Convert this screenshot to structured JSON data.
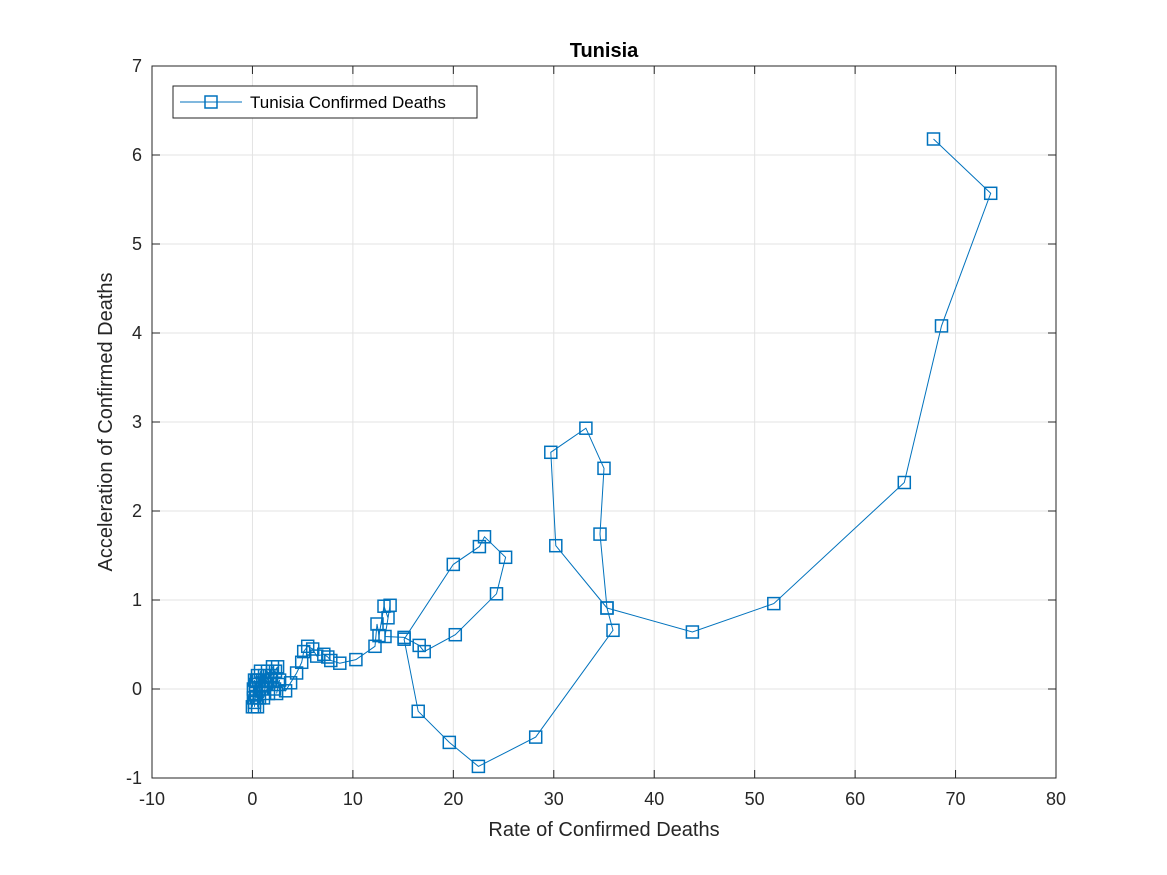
{
  "chart_data": {
    "type": "line",
    "title": "Tunisia",
    "xlabel": "Rate of Confirmed Deaths",
    "ylabel": "Acceleration of Confirmed Deaths",
    "xlim": [
      -10,
      80
    ],
    "ylim": [
      -1,
      7
    ],
    "xticks": [
      -10,
      0,
      10,
      20,
      30,
      40,
      50,
      60,
      70,
      80
    ],
    "yticks": [
      -1,
      0,
      1,
      2,
      3,
      4,
      5,
      6,
      7
    ],
    "grid": true,
    "legend_position": "top-left",
    "marker": "square",
    "series": [
      {
        "name": "Tunisia Confirmed Deaths",
        "color": "#0072BD",
        "x": [
          0,
          0.1,
          0.2,
          0.1,
          0.3,
          0.2,
          0.4,
          0.3,
          0.5,
          0.2,
          0.6,
          0.4,
          0.8,
          0.5,
          1.0,
          0.7,
          1.2,
          0.9,
          1.5,
          1.1,
          1.8,
          1.3,
          2.0,
          1.6,
          2.3,
          1.9,
          2.5,
          2.2,
          2.7,
          2.4,
          2.6,
          3.3,
          3.8,
          4.4,
          4.9,
          5.1,
          5.5,
          6.0,
          6.4,
          7.1,
          7.5,
          7.8,
          8.7,
          10.3,
          12.2,
          12.4,
          12.6,
          13.1,
          13.5,
          13.7,
          13.2,
          15.1,
          16.6,
          17.1,
          20.2,
          24.3,
          25.2,
          23.1,
          22.6,
          20.0,
          15.1,
          16.5,
          19.6,
          22.5,
          28.2,
          35.9,
          35.3,
          34.6,
          35.0,
          33.2,
          29.7,
          30.2,
          35.3,
          43.8,
          51.9,
          64.9,
          68.6,
          73.5,
          67.8
        ],
        "y": [
          -0.2,
          0,
          0.1,
          -0.1,
          0.05,
          -0.2,
          0.1,
          -0.05,
          0.15,
          -0.15,
          0.1,
          -0.1,
          0.2,
          -0.2,
          0.1,
          -0.1,
          0.15,
          0,
          0.2,
          -0.1,
          0.1,
          0.05,
          0.25,
          -0.05,
          0.2,
          0.15,
          0.25,
          0,
          0.1,
          -0.05,
          0.05,
          -0.02,
          0.07,
          0.18,
          0.3,
          0.42,
          0.48,
          0.45,
          0.37,
          0.39,
          0.36,
          0.32,
          0.29,
          0.33,
          0.48,
          0.73,
          0.6,
          0.93,
          0.8,
          0.94,
          0.59,
          0.58,
          0.49,
          0.42,
          0.61,
          1.07,
          1.48,
          1.71,
          1.6,
          1.4,
          0.56,
          -0.25,
          -0.6,
          -0.87,
          -0.54,
          0.66,
          0.91,
          1.74,
          2.48,
          2.93,
          2.66,
          1.61,
          0.91,
          0.64,
          0.96,
          2.32,
          4.08,
          5.57,
          6.18
        ]
      }
    ]
  }
}
